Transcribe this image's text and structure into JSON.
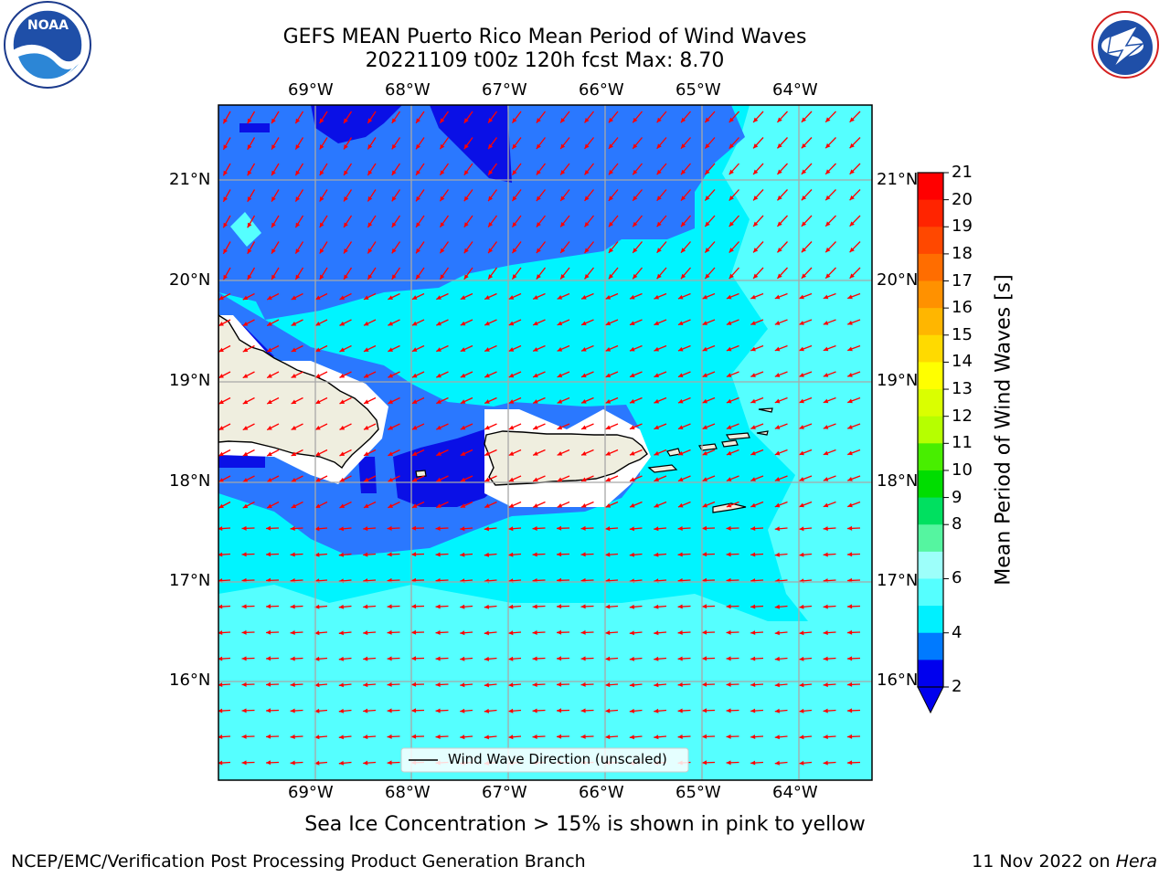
{
  "header": {
    "title_line1": "GEFS MEAN Puerto Rico Mean Period of Wind Waves",
    "title_line2": "20221109 t00z 120h fcst   Max: 8.70"
  },
  "logos": {
    "left": "NOAA",
    "right": "NATIONAL WEATHER SERVICE"
  },
  "map": {
    "lon_labels": [
      "69°W",
      "68°W",
      "67°W",
      "66°W",
      "65°W",
      "64°W"
    ],
    "lat_labels": [
      "21°N",
      "20°N",
      "19°N",
      "18°N",
      "17°N",
      "16°N"
    ],
    "legend_label": "Wind Wave Direction (unscaled)"
  },
  "colorbar": {
    "label": "Mean Period of Wind Waves [s]",
    "ticks": [
      "21",
      "20",
      "19",
      "18",
      "17",
      "16",
      "15",
      "14",
      "13",
      "12",
      "11",
      "10",
      "9",
      "8",
      "6",
      "4",
      "2"
    ],
    "colors": [
      "#ff0000",
      "#ff2400",
      "#ff4800",
      "#ff6d00",
      "#ff9100",
      "#ffb600",
      "#ffda00",
      "#ffff00",
      "#daff00",
      "#b6ff00",
      "#48ee00",
      "#00dd00",
      "#00e060",
      "#55f5a0",
      "#9dfffa",
      "#55ffff",
      "#00f0ff",
      "#007aff",
      "#0000ee"
    ]
  },
  "notes": {
    "sea_ice": "Sea Ice Concentration > 15% is shown in pink to yellow",
    "footer_left": "NCEP/EMC/Verification Post Processing Product Generation Branch",
    "footer_date": "11 Nov 2022 on ",
    "footer_host": "Hera"
  },
  "colors": {
    "land": "#efeedf",
    "sea_blue": "#2a78ff",
    "sea_dark": "#0a10e6",
    "sea_cyan": "#00f4ff",
    "sea_light": "#55ffff",
    "arrow": "#ff0000"
  }
}
